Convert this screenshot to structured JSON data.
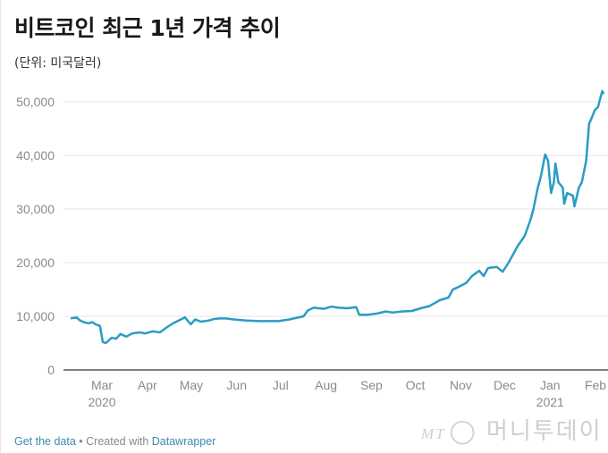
{
  "header": {
    "title": "비트코인 최근 1년 가격 추이",
    "subtitle": "(단위: 미국달러)"
  },
  "chart_data": {
    "type": "line",
    "title": "비트코인 최근 1년 가격 추이",
    "subtitle": "(단위: 미국달러)",
    "xlabel": "",
    "ylabel": "",
    "ylim": [
      0,
      52000
    ],
    "y_ticks": [
      0,
      10000,
      20000,
      30000,
      40000,
      50000
    ],
    "y_tick_labels": [
      "0",
      "10,000",
      "20,000",
      "30,000",
      "40,000",
      "50,000"
    ],
    "x_ticks": [
      {
        "date": "2020-03-01",
        "label": "Mar",
        "sub": "2020"
      },
      {
        "date": "2020-04-01",
        "label": "Apr"
      },
      {
        "date": "2020-05-01",
        "label": "May"
      },
      {
        "date": "2020-06-01",
        "label": "Jun"
      },
      {
        "date": "2020-07-01",
        "label": "Jul"
      },
      {
        "date": "2020-08-01",
        "label": "Aug"
      },
      {
        "date": "2020-09-01",
        "label": "Sep"
      },
      {
        "date": "2020-10-01",
        "label": "Oct"
      },
      {
        "date": "2020-11-01",
        "label": "Nov"
      },
      {
        "date": "2020-12-01",
        "label": "Dec"
      },
      {
        "date": "2021-01-01",
        "label": "Jan",
        "sub": "2021"
      },
      {
        "date": "2021-02-01",
        "label": "Feb"
      }
    ],
    "grid": "horizontal",
    "line_color": "#2a9cc4",
    "series": [
      {
        "points": [
          [
            "2020-02-19",
            9600
          ],
          [
            "2020-02-23",
            9800
          ],
          [
            "2020-02-25",
            9300
          ],
          [
            "2020-02-28",
            8900
          ],
          [
            "2020-03-02",
            8700
          ],
          [
            "2020-03-05",
            8900
          ],
          [
            "2020-03-07",
            8500
          ],
          [
            "2020-03-10",
            8200
          ],
          [
            "2020-03-12",
            5200
          ],
          [
            "2020-03-14",
            5000
          ],
          [
            "2020-03-18",
            6000
          ],
          [
            "2020-03-21",
            5800
          ],
          [
            "2020-03-24",
            6700
          ],
          [
            "2020-03-28",
            6200
          ],
          [
            "2020-04-01",
            6800
          ],
          [
            "2020-04-06",
            7000
          ],
          [
            "2020-04-10",
            6800
          ],
          [
            "2020-04-15",
            7200
          ],
          [
            "2020-04-20",
            7000
          ],
          [
            "2020-04-25",
            8000
          ],
          [
            "2020-04-29",
            8700
          ],
          [
            "2020-05-07",
            9800
          ],
          [
            "2020-05-11",
            8500
          ],
          [
            "2020-05-14",
            9400
          ],
          [
            "2020-05-18",
            9000
          ],
          [
            "2020-05-23",
            9200
          ],
          [
            "2020-05-27",
            9500
          ],
          [
            "2020-05-31",
            9600
          ],
          [
            "2020-06-04",
            9600
          ],
          [
            "2020-06-10",
            9400
          ],
          [
            "2020-06-18",
            9200
          ],
          [
            "2020-06-27",
            9100
          ],
          [
            "2020-07-10",
            9100
          ],
          [
            "2020-07-17",
            9400
          ],
          [
            "2020-07-27",
            10000
          ],
          [
            "2020-07-30",
            11100
          ],
          [
            "2020-08-03",
            11600
          ],
          [
            "2020-08-10",
            11400
          ],
          [
            "2020-08-15",
            11800
          ],
          [
            "2020-08-20",
            11600
          ],
          [
            "2020-08-26",
            11500
          ],
          [
            "2020-09-01",
            11700
          ],
          [
            "2020-09-03",
            10300
          ],
          [
            "2020-09-09",
            10300
          ],
          [
            "2020-09-15",
            10500
          ],
          [
            "2020-09-21",
            10900
          ],
          [
            "2020-09-26",
            10700
          ],
          [
            "2020-10-02",
            10900
          ],
          [
            "2020-10-09",
            11000
          ],
          [
            "2020-10-15",
            11500
          ],
          [
            "2020-10-21",
            11900
          ],
          [
            "2020-10-28",
            13000
          ],
          [
            "2020-11-03",
            13500
          ],
          [
            "2020-11-06",
            15000
          ],
          [
            "2020-11-10",
            15500
          ],
          [
            "2020-11-15",
            16200
          ],
          [
            "2020-11-19",
            17500
          ],
          [
            "2020-11-24",
            18500
          ],
          [
            "2020-11-27",
            17500
          ],
          [
            "2020-11-30",
            19000
          ],
          [
            "2020-12-06",
            19200
          ],
          [
            "2020-12-10",
            18300
          ],
          [
            "2020-12-14",
            20000
          ],
          [
            "2020-12-17",
            21500
          ],
          [
            "2020-12-20",
            23000
          ],
          [
            "2020-12-25",
            25000
          ],
          [
            "2020-12-29",
            28000
          ],
          [
            "2020-12-31",
            30000
          ],
          [
            "2021-01-03",
            34000
          ],
          [
            "2021-01-05",
            36000
          ],
          [
            "2021-01-08",
            40200
          ],
          [
            "2021-01-10",
            39000
          ],
          [
            "2021-01-12",
            33000
          ],
          [
            "2021-01-14",
            35000
          ],
          [
            "2021-01-15",
            38500
          ],
          [
            "2021-01-17",
            35000
          ],
          [
            "2021-01-20",
            34000
          ],
          [
            "2021-01-21",
            31000
          ],
          [
            "2021-01-23",
            33000
          ],
          [
            "2021-01-27",
            32500
          ],
          [
            "2021-01-28",
            30500
          ],
          [
            "2021-01-31",
            34000
          ],
          [
            "2021-02-02",
            35000
          ],
          [
            "2021-02-05",
            39000
          ],
          [
            "2021-02-07",
            46000
          ],
          [
            "2021-02-08",
            46500
          ],
          [
            "2021-02-11",
            48500
          ],
          [
            "2021-02-13",
            49000
          ],
          [
            "2021-02-16",
            52000
          ],
          [
            "2021-02-17",
            51500
          ]
        ]
      }
    ]
  },
  "footer": {
    "get_data": "Get the data",
    "separator": " • Created with ",
    "datawrapper": "Datawrapper"
  },
  "watermark": "MT 머니투데이"
}
